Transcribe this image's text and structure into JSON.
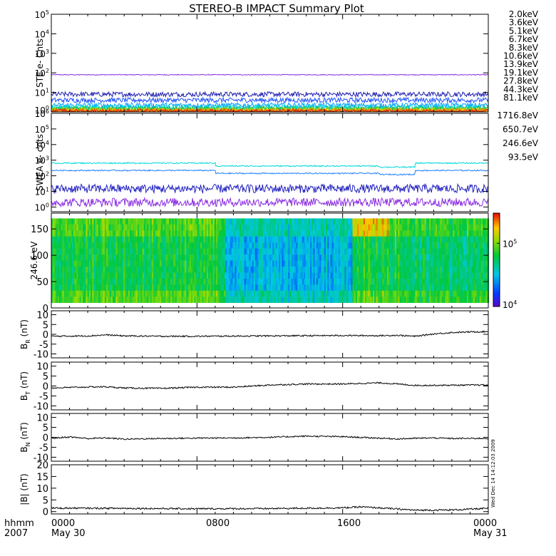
{
  "title": "STEREO-B IMPACT Summary Plot",
  "stamp": "Wed Dec 14 14:12:03 2009",
  "x_axis": {
    "ticks": [
      "0000",
      "0800",
      "1600",
      "0000"
    ],
    "date_left": "May 30",
    "date_right": "May 31",
    "row1_label": "hhmm",
    "row2_label": "2007"
  },
  "chart_data": [
    {
      "type": "line",
      "ylabel": "STE e- Cnts",
      "log_scale": true,
      "ylim": [
        1,
        100000
      ],
      "y_ticks": [
        {
          "base": "10",
          "exp": "0"
        },
        {
          "base": "10",
          "exp": "1"
        },
        {
          "base": "10",
          "exp": "2"
        },
        {
          "base": "10",
          "exp": "3"
        },
        {
          "base": "10",
          "exp": "4"
        },
        {
          "base": "10",
          "exp": "5"
        }
      ],
      "series": [
        {
          "name": "2.0keV",
          "color": "#8a2be2",
          "level": 80
        },
        {
          "name": "3.6keV",
          "color": "#2020b0",
          "level": 8
        },
        {
          "name": "5.1keV",
          "color": "#2050ff",
          "level": 4
        },
        {
          "name": "6.7keV",
          "color": "#00a0ff",
          "level": 2.2
        },
        {
          "name": "8.3keV",
          "color": "#00d8d8",
          "level": 1.7
        },
        {
          "name": "10.6keV",
          "color": "#00c080",
          "level": 1.5
        },
        {
          "name": "13.9keV",
          "color": "#30c030",
          "level": 1.35
        },
        {
          "name": "19.1keV",
          "color": "#a0d000",
          "level": 1.25
        },
        {
          "name": "27.8keV",
          "color": "#f0c000",
          "level": 1.15
        },
        {
          "name": "44.3keV",
          "color": "#ff8000",
          "level": 1.1
        },
        {
          "name": "81.1keV",
          "color": "#e02000",
          "level": 1.05
        }
      ]
    },
    {
      "type": "line",
      "ylabel": "SWEA e- cnts",
      "log_scale": true,
      "ylim": [
        0.5,
        1000000
      ],
      "y_ticks": [
        {
          "base": "10",
          "exp": "0"
        },
        {
          "base": "10",
          "exp": "1"
        },
        {
          "base": "10",
          "exp": "2"
        },
        {
          "base": "10",
          "exp": "3"
        },
        {
          "base": "10",
          "exp": "4"
        },
        {
          "base": "10",
          "exp": "5"
        },
        {
          "base": "10",
          "exp": "6"
        }
      ],
      "series": [
        {
          "name": "1716.8eV",
          "color": "#8a2be2",
          "level": 2
        },
        {
          "name": "650.7eV",
          "color": "#2020c0",
          "level": 15
        },
        {
          "name": "246.6eV",
          "color": "#2080ff",
          "level": 220
        },
        {
          "name": "93.5eV",
          "color": "#00d8d8",
          "level": 650
        }
      ]
    },
    {
      "type": "heatmap",
      "ylabel": "246.6 eV",
      "ylim": [
        0,
        180
      ],
      "y_ticks": [
        "0",
        "50",
        "100",
        "150"
      ],
      "colorbar": {
        "ticks": [
          {
            "base": "10",
            "exp": "4"
          },
          {
            "base": "10",
            "exp": "5"
          }
        ],
        "range": [
          10000,
          300000
        ]
      },
      "pitch_range": [
        10,
        170
      ]
    },
    {
      "type": "line",
      "ylabel": "B",
      "ylabel_sub": "R",
      "ylabel_unit": " (nT)",
      "ylim": [
        -12,
        12
      ],
      "y_ticks": [
        "10",
        "5",
        "0",
        "-5",
        "-10"
      ],
      "x": [
        0,
        2,
        3,
        4,
        6,
        8,
        10,
        12,
        14,
        16,
        18,
        19,
        20,
        21,
        22,
        23,
        24
      ],
      "values": [
        -1,
        -0.8,
        -0.3,
        -0.8,
        -1,
        -1,
        -0.9,
        -0.8,
        -0.7,
        -0.6,
        -0.7,
        -0.5,
        -1.0,
        0.2,
        0.9,
        1.2,
        1.4
      ]
    },
    {
      "type": "line",
      "ylabel": "B",
      "ylabel_sub": "T",
      "ylabel_unit": " (nT)",
      "ylim": [
        -12,
        12
      ],
      "y_ticks": [
        "10",
        "5",
        "0",
        "-5",
        "-10"
      ],
      "x": [
        0,
        2,
        3,
        4,
        6,
        8,
        10,
        12,
        14,
        16,
        18,
        19,
        20,
        22,
        24
      ],
      "values": [
        -1,
        -0.5,
        -0.4,
        -1.0,
        -1.2,
        -0.6,
        -0.6,
        0.5,
        1.0,
        1.0,
        1.6,
        1.0,
        0.3,
        0.4,
        0.5
      ]
    },
    {
      "type": "line",
      "ylabel": "B",
      "ylabel_sub": "N",
      "ylabel_unit": " (nT)",
      "ylim": [
        -12,
        12
      ],
      "y_ticks": [
        "10",
        "5",
        "0",
        "-5",
        "-10"
      ],
      "x": [
        0,
        1,
        2,
        3,
        4,
        6,
        8,
        10,
        12,
        14,
        16,
        18,
        19,
        20,
        21,
        22,
        24
      ],
      "values": [
        -0.5,
        0.2,
        -0.6,
        -0.3,
        -0.9,
        -0.6,
        -0.4,
        -0.3,
        0.0,
        0.6,
        0.3,
        -0.4,
        -0.8,
        -0.5,
        -0.3,
        -0.6,
        -0.5
      ]
    },
    {
      "type": "line",
      "ylabel": "|B|",
      "ylabel_sub": "",
      "ylabel_unit": " (nT)",
      "ylim": [
        -1,
        20
      ],
      "y_ticks": [
        "20",
        "15",
        "10",
        "5",
        "0"
      ],
      "x": [
        0,
        4,
        8,
        12,
        16,
        17,
        18,
        20,
        22,
        24
      ],
      "values": [
        1.5,
        1.4,
        1.2,
        1.3,
        1.6,
        2.0,
        1.6,
        0.6,
        0.7,
        1.4
      ]
    }
  ]
}
